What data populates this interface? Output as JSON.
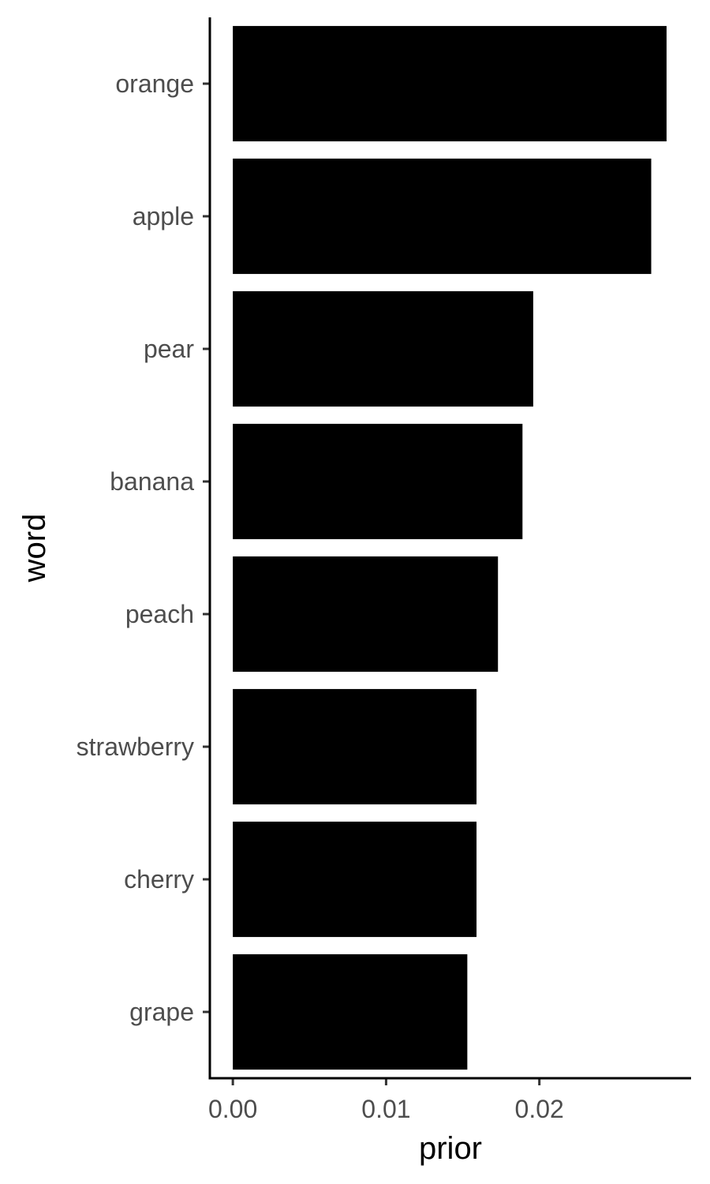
{
  "chart_data": {
    "type": "bar",
    "orientation": "horizontal",
    "title": "",
    "xlabel": "prior",
    "ylabel": "word",
    "categories": [
      "orange",
      "apple",
      "pear",
      "banana",
      "peach",
      "strawberry",
      "cherry",
      "grape"
    ],
    "values": [
      0.0283,
      0.0273,
      0.0196,
      0.0189,
      0.0173,
      0.0159,
      0.0159,
      0.0153
    ],
    "xlim": [
      -0.0015,
      0.0299
    ],
    "xticks": [
      0.0,
      0.01,
      0.02
    ],
    "xtick_labels": [
      "0.00",
      "0.01",
      "0.02"
    ],
    "bar_color": "#000000",
    "grid": false,
    "legend": "none"
  }
}
